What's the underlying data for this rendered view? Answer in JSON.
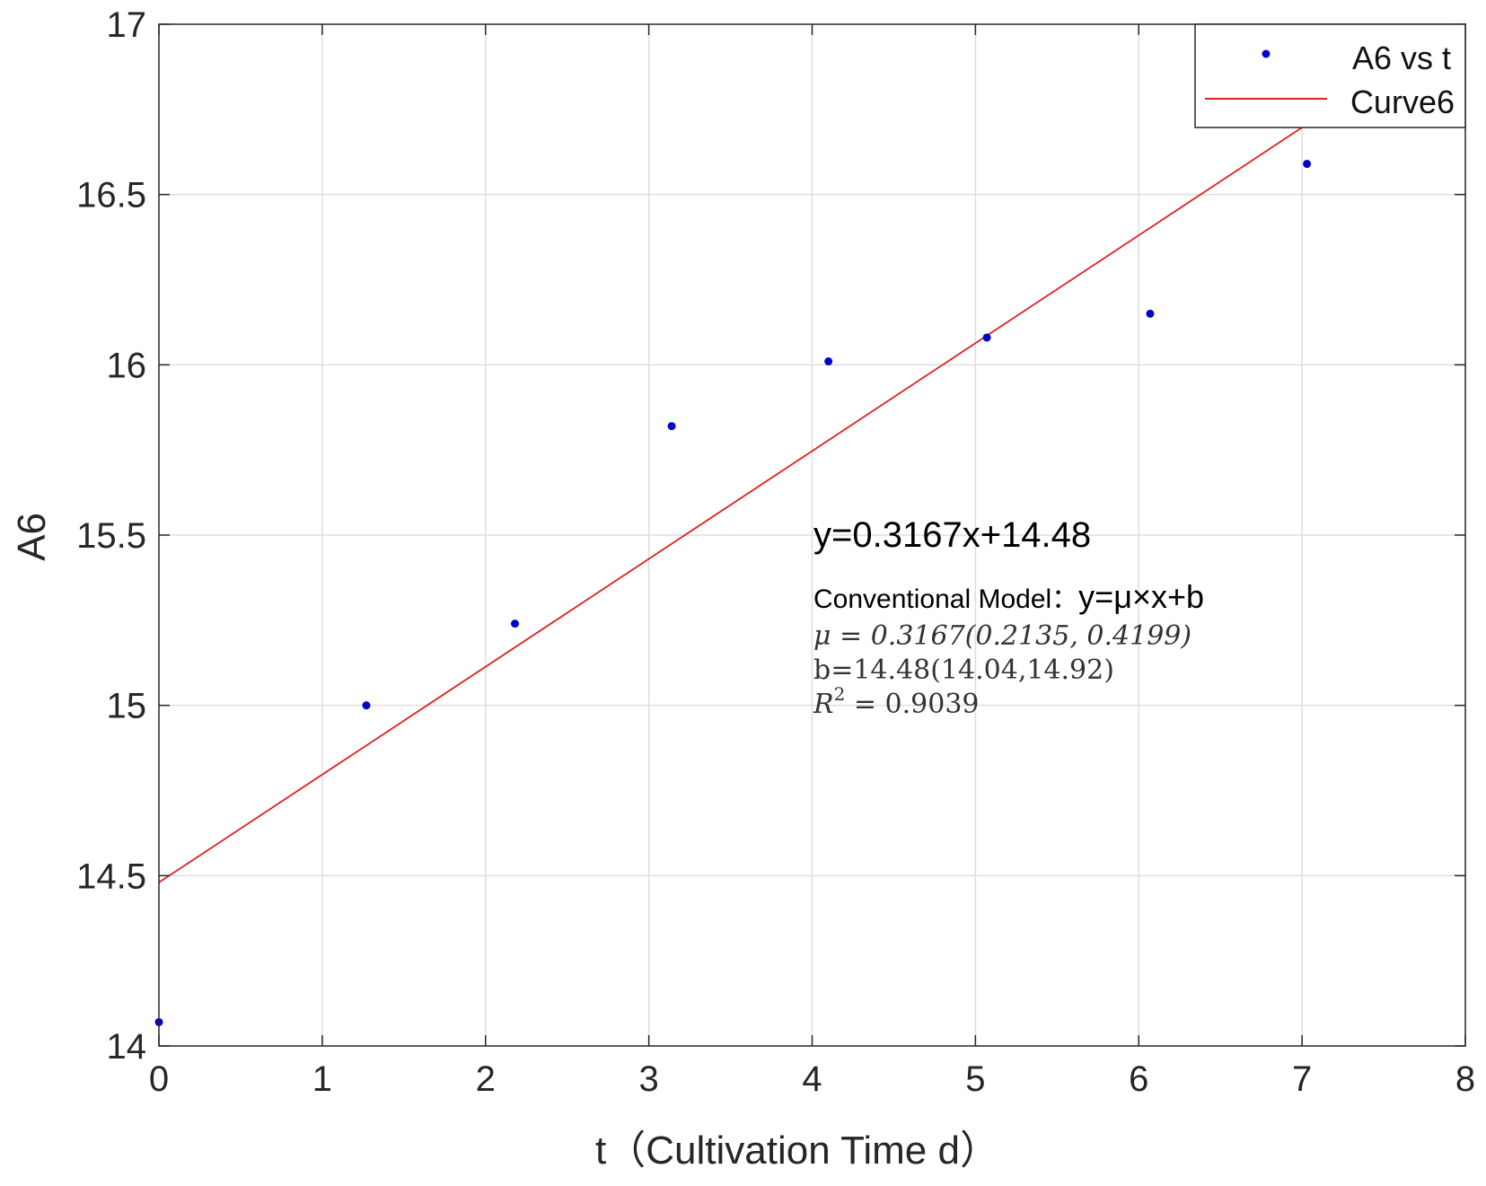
{
  "chart_data": {
    "type": "scatter",
    "xlabel": "t（Cultivation Time d）",
    "ylabel": "A6",
    "xlim": [
      0,
      8
    ],
    "ylim": [
      14,
      17
    ],
    "xticks": [
      "0",
      "1",
      "2",
      "3",
      "4",
      "5",
      "6",
      "7",
      "8"
    ],
    "yticks": [
      "14",
      "14.5",
      "15",
      "15.5",
      "16",
      "16.5",
      "17"
    ],
    "grid": true,
    "legend_position": "top-right",
    "series": [
      {
        "name": "A6 vs t",
        "kind": "scatter",
        "color": "#0000cc",
        "points": [
          {
            "x": 0.0,
            "y": 14.07
          },
          {
            "x": 1.27,
            "y": 15.0
          },
          {
            "x": 2.18,
            "y": 15.24
          },
          {
            "x": 3.14,
            "y": 15.82
          },
          {
            "x": 4.1,
            "y": 16.01
          },
          {
            "x": 5.07,
            "y": 16.08
          },
          {
            "x": 6.07,
            "y": 16.15
          },
          {
            "x": 7.03,
            "y": 16.59
          }
        ]
      },
      {
        "name": "Curve6",
        "kind": "line",
        "color": "#e02020",
        "slope": 0.3167,
        "intercept": 14.48,
        "x_range": [
          0,
          7.03
        ]
      }
    ],
    "annotations": {
      "equation": "y=0.3167x+14.48",
      "model_label": "Conventional Model：",
      "model_formula": "y=μ×x+b",
      "mu_line": "μ = 0.3167(0.2135, 0.4199)",
      "b_line": "b=14.48(14.04,14.92)",
      "r2_prefix": "R",
      "r2_exp": "2",
      "r2_value": " = 0.9039"
    }
  }
}
